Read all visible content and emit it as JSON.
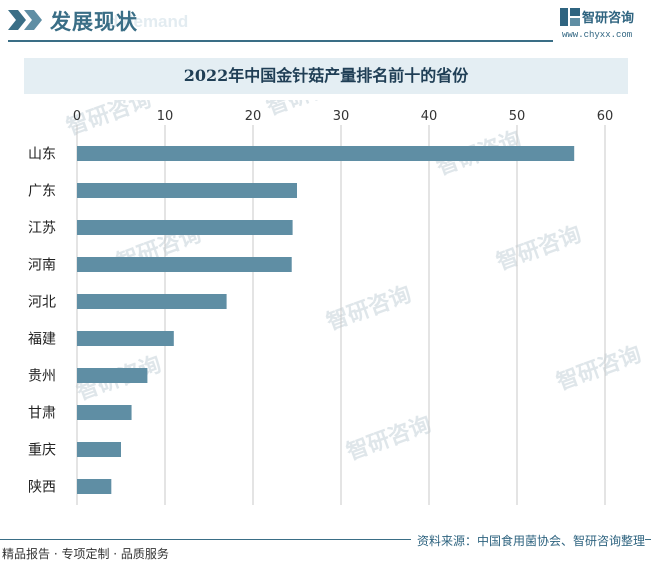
{
  "header": {
    "title": "发展现状",
    "ghost_text": "d demand",
    "brand_name": "智研咨询",
    "brand_url": "www.chyxx.com"
  },
  "watermark": {
    "text": "智研咨询"
  },
  "footer": {
    "left": "精品报告 · 专项定制 · 品质服务",
    "source": "资料来源：中国食用菌协会、智研咨询整理"
  },
  "colors": {
    "bar": "#5f8ea4",
    "accent": "#3a6e86",
    "grid": "#c9c9c9",
    "band": "#e4eef3"
  },
  "chart_data": {
    "type": "bar",
    "orientation": "horizontal",
    "title": "2022年中国金针菇产量排名前十的省份",
    "categories": [
      "山东",
      "广东",
      "江苏",
      "河南",
      "河北",
      "福建",
      "贵州",
      "甘肃",
      "重庆",
      "陕西"
    ],
    "values": [
      56.5,
      25.0,
      24.5,
      24.4,
      17.0,
      11.0,
      8.0,
      6.2,
      5.0,
      3.9
    ],
    "xlim": [
      0,
      60
    ],
    "xticks": [
      0,
      10,
      20,
      30,
      40,
      50,
      60
    ],
    "xaxis_position": "top",
    "grid": true,
    "legend": "none",
    "xlabel": "",
    "ylabel": ""
  }
}
